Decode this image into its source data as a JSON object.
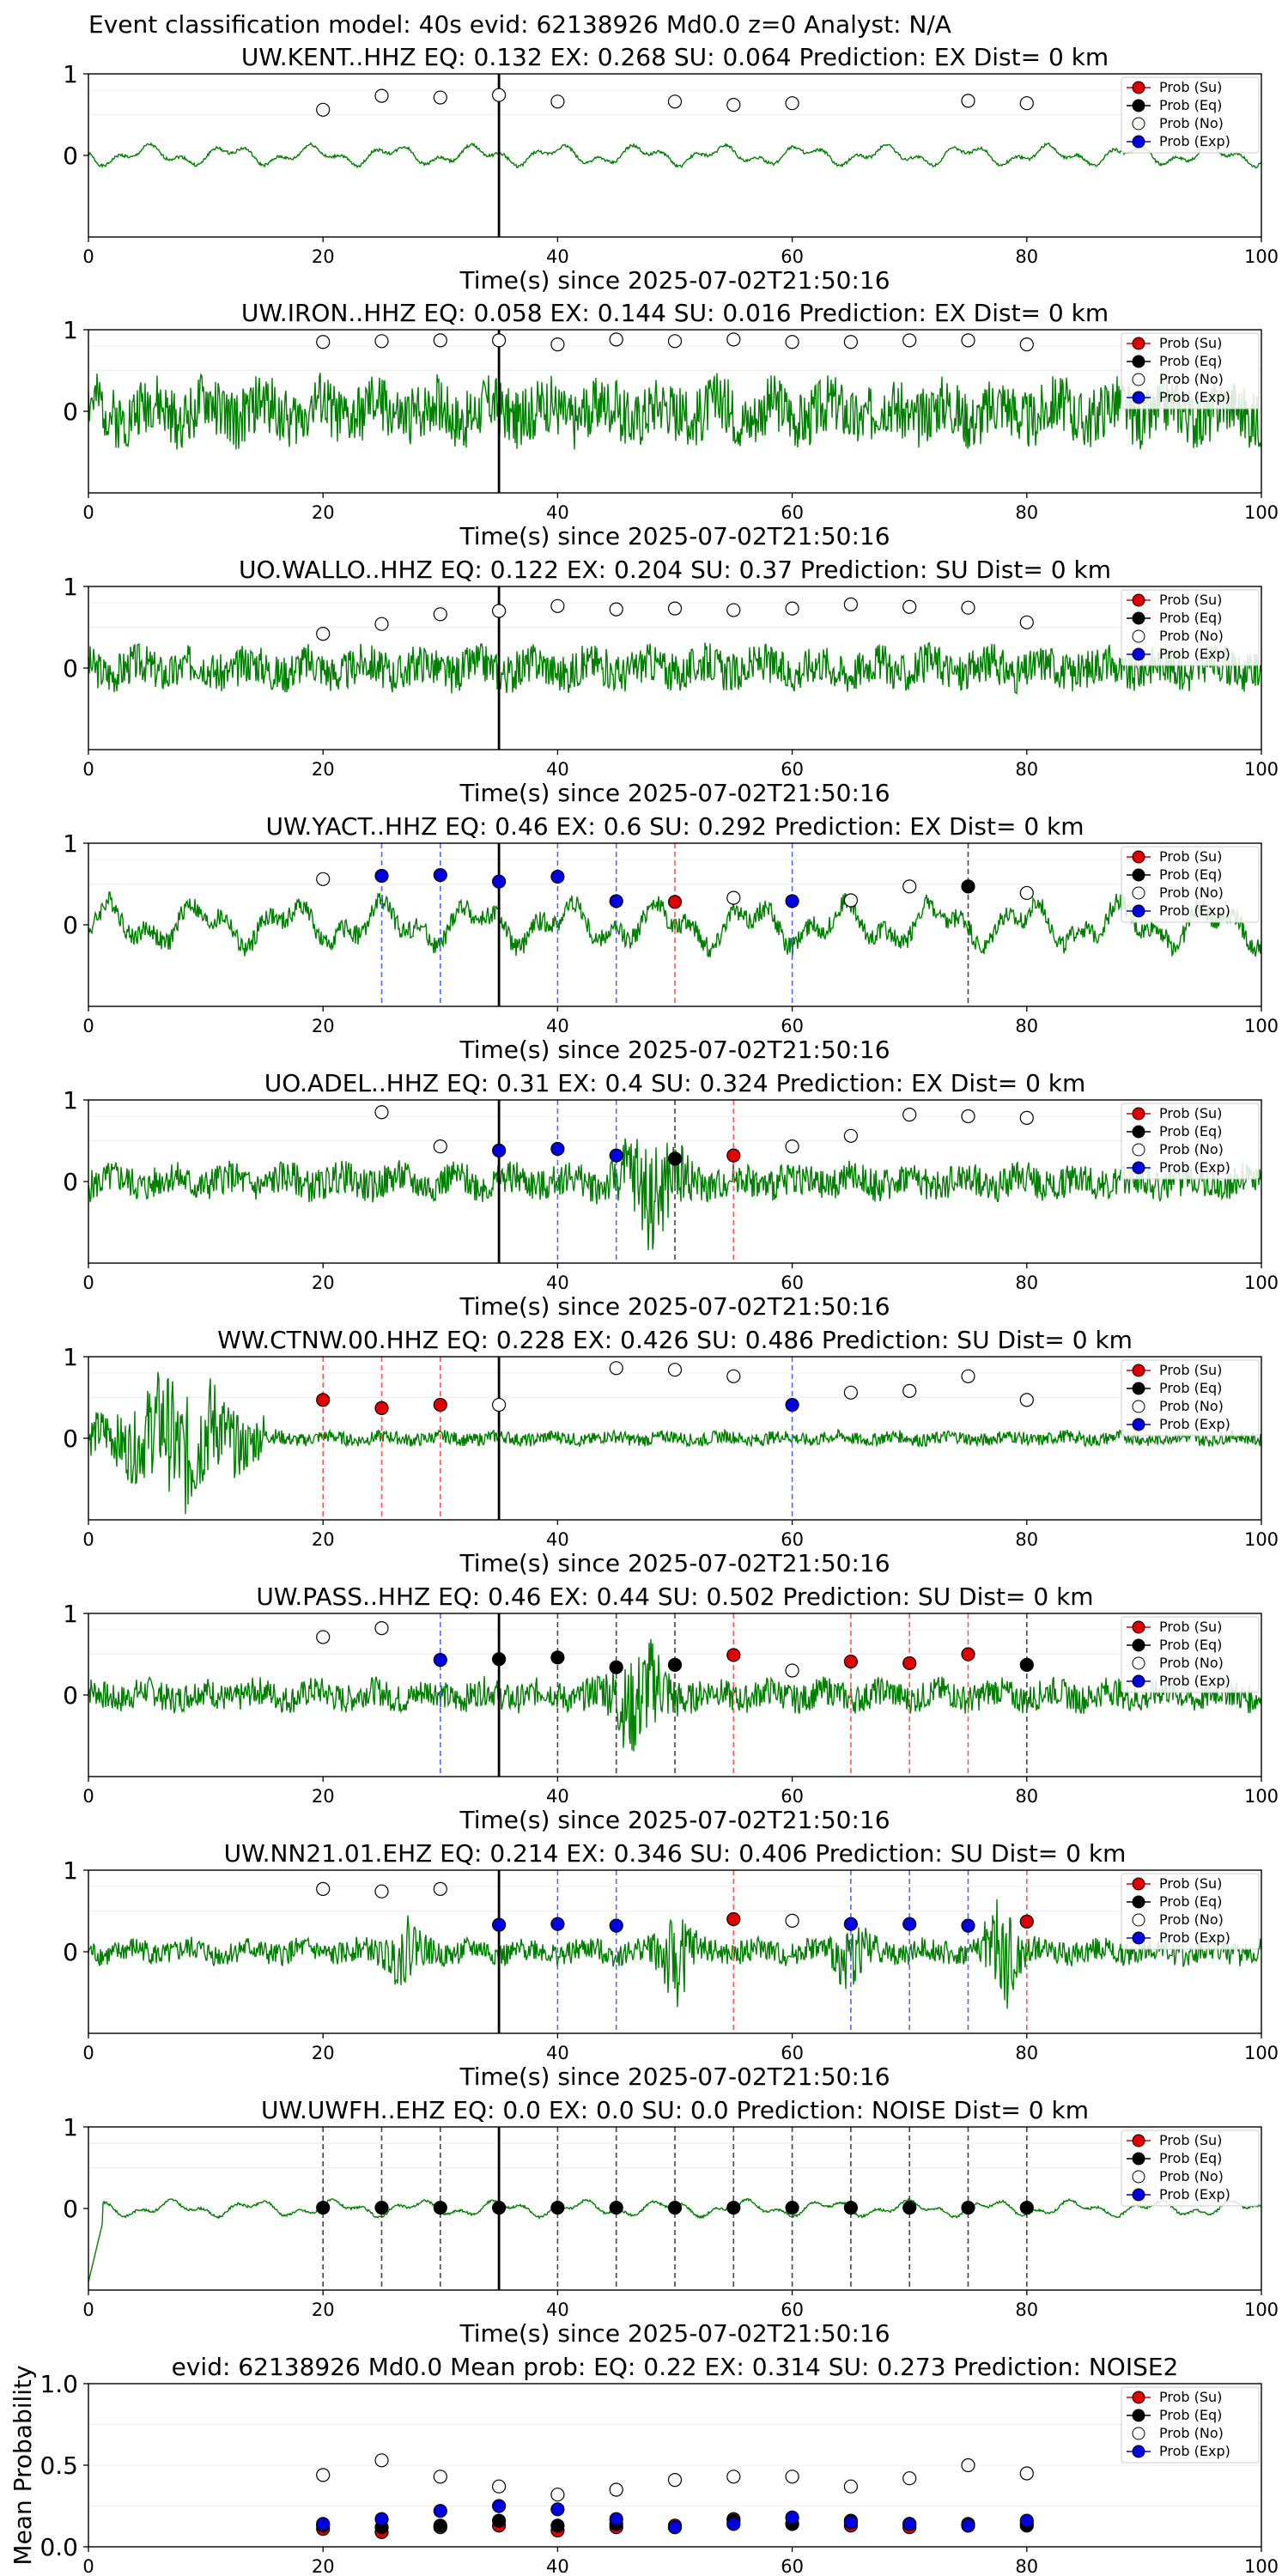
{
  "suptitle": "Event classification model: 40s evid: 62138926 Md0.0 z=0 Analyst: N/A",
  "colors": {
    "waveform": "#008000",
    "su": "#e00000",
    "eq": "#000000",
    "no": "#ffffff",
    "exp": "#0000e0",
    "ref_line": "#000000"
  },
  "legend": [
    "Prob (Su)",
    "Prob (Eq)",
    "Prob (No)",
    "Prob (Exp)"
  ],
  "xlabel": "Time(s) since 2025-07-02T21:50:16",
  "x_ticks": [
    "0",
    "20",
    "40",
    "60",
    "80",
    "100"
  ],
  "chart_data": [
    {
      "type": "line+scatter",
      "title": "UW.KENT..HHZ   EQ: 0.132  EX: 0.268  SU: 0.064   Prediction: EX    Dist= 0 km",
      "xlim": [
        0,
        100
      ],
      "ylim": [
        -1,
        1
      ],
      "yticks": [
        "1",
        "0"
      ],
      "ref_time": 35,
      "wave": {
        "style": "smooth",
        "amp": 0.15,
        "seed": 1
      },
      "points": [
        {
          "t": 20,
          "cls": "no",
          "p": 0.56
        },
        {
          "t": 25,
          "cls": "no",
          "p": 0.73
        },
        {
          "t": 30,
          "cls": "no",
          "p": 0.71
        },
        {
          "t": 35,
          "cls": "no",
          "p": 0.74
        },
        {
          "t": 40,
          "cls": "no",
          "p": 0.66
        },
        {
          "t": 50,
          "cls": "no",
          "p": 0.66
        },
        {
          "t": 55,
          "cls": "no",
          "p": 0.62
        },
        {
          "t": 60,
          "cls": "no",
          "p": 0.64
        },
        {
          "t": 75,
          "cls": "no",
          "p": 0.67
        },
        {
          "t": 80,
          "cls": "no",
          "p": 0.64
        }
      ]
    },
    {
      "type": "line+scatter",
      "title": "UW.IRON..HHZ   EQ: 0.058  EX: 0.144  SU: 0.016   Prediction: EX    Dist= 0 km",
      "xlim": [
        0,
        100
      ],
      "ylim": [
        -1,
        1
      ],
      "yticks": [
        "1",
        "0"
      ],
      "ref_time": 35,
      "wave": {
        "style": "noise",
        "amp": 0.45,
        "seed": 2
      },
      "points": [
        {
          "t": 20,
          "cls": "no",
          "p": 0.85
        },
        {
          "t": 25,
          "cls": "no",
          "p": 0.86
        },
        {
          "t": 30,
          "cls": "no",
          "p": 0.87
        },
        {
          "t": 35,
          "cls": "no",
          "p": 0.87
        },
        {
          "t": 40,
          "cls": "no",
          "p": 0.82
        },
        {
          "t": 45,
          "cls": "no",
          "p": 0.88
        },
        {
          "t": 50,
          "cls": "no",
          "p": 0.86
        },
        {
          "t": 55,
          "cls": "no",
          "p": 0.88
        },
        {
          "t": 60,
          "cls": "no",
          "p": 0.85
        },
        {
          "t": 65,
          "cls": "no",
          "p": 0.85
        },
        {
          "t": 70,
          "cls": "no",
          "p": 0.87
        },
        {
          "t": 75,
          "cls": "no",
          "p": 0.87
        },
        {
          "t": 80,
          "cls": "no",
          "p": 0.82
        }
      ]
    },
    {
      "type": "line+scatter",
      "title": "UO.WALLO..HHZ   EQ: 0.122  EX: 0.204  SU: 0.37   Prediction: SU    Dist= 0 km",
      "xlim": [
        0,
        100
      ],
      "ylim": [
        -1,
        1
      ],
      "yticks": [
        "1",
        "0"
      ],
      "ref_time": 35,
      "wave": {
        "style": "noise",
        "amp": 0.3,
        "seed": 3
      },
      "points": [
        {
          "t": 20,
          "cls": "no",
          "p": 0.42
        },
        {
          "t": 25,
          "cls": "no",
          "p": 0.54
        },
        {
          "t": 30,
          "cls": "no",
          "p": 0.66
        },
        {
          "t": 35,
          "cls": "no",
          "p": 0.7
        },
        {
          "t": 40,
          "cls": "no",
          "p": 0.76
        },
        {
          "t": 45,
          "cls": "no",
          "p": 0.72
        },
        {
          "t": 50,
          "cls": "no",
          "p": 0.73
        },
        {
          "t": 55,
          "cls": "no",
          "p": 0.71
        },
        {
          "t": 60,
          "cls": "no",
          "p": 0.73
        },
        {
          "t": 65,
          "cls": "no",
          "p": 0.78
        },
        {
          "t": 70,
          "cls": "no",
          "p": 0.75
        },
        {
          "t": 75,
          "cls": "no",
          "p": 0.74
        },
        {
          "t": 80,
          "cls": "no",
          "p": 0.56
        }
      ]
    },
    {
      "type": "line+scatter",
      "title": "UW.YACT..HHZ   EQ: 0.46  EX: 0.6  SU: 0.292   Prediction: EX    Dist= 0 km",
      "xlim": [
        0,
        100
      ],
      "ylim": [
        -1,
        1
      ],
      "yticks": [
        "1",
        "0"
      ],
      "ref_time": 35,
      "wave": {
        "style": "mixed",
        "amp": 0.4,
        "seed": 4
      },
      "points": [
        {
          "t": 20,
          "cls": "no",
          "p": 0.56
        },
        {
          "t": 25,
          "cls": "exp",
          "p": 0.6
        },
        {
          "t": 30,
          "cls": "exp",
          "p": 0.61
        },
        {
          "t": 35,
          "cls": "exp",
          "p": 0.53
        },
        {
          "t": 40,
          "cls": "exp",
          "p": 0.59
        },
        {
          "t": 45,
          "cls": "exp",
          "p": 0.29
        },
        {
          "t": 50,
          "cls": "su",
          "p": 0.28
        },
        {
          "t": 55,
          "cls": "no",
          "p": 0.33
        },
        {
          "t": 60,
          "cls": "exp",
          "p": 0.29
        },
        {
          "t": 65,
          "cls": "no",
          "p": 0.3
        },
        {
          "t": 70,
          "cls": "no",
          "p": 0.47
        },
        {
          "t": 75,
          "cls": "eq",
          "p": 0.47
        },
        {
          "t": 80,
          "cls": "no",
          "p": 0.39
        }
      ]
    },
    {
      "type": "line+scatter",
      "title": "UO.ADEL..HHZ   EQ: 0.31  EX: 0.4  SU: 0.324   Prediction: EX    Dist= 0 km",
      "xlim": [
        0,
        100
      ],
      "ylim": [
        -1,
        1
      ],
      "yticks": [
        "1",
        "0"
      ],
      "ref_time": 35,
      "wave": {
        "style": "burst",
        "amp": 0.25,
        "seed": 5,
        "burst_at": 48,
        "burst_amp": 0.85
      },
      "points": [
        {
          "t": 25,
          "cls": "no",
          "p": 0.85
        },
        {
          "t": 30,
          "cls": "no",
          "p": 0.43
        },
        {
          "t": 35,
          "cls": "exp",
          "p": 0.38
        },
        {
          "t": 40,
          "cls": "exp",
          "p": 0.4
        },
        {
          "t": 45,
          "cls": "exp",
          "p": 0.32
        },
        {
          "t": 50,
          "cls": "eq",
          "p": 0.28
        },
        {
          "t": 55,
          "cls": "su",
          "p": 0.32
        },
        {
          "t": 60,
          "cls": "no",
          "p": 0.43
        },
        {
          "t": 65,
          "cls": "no",
          "p": 0.56
        },
        {
          "t": 70,
          "cls": "no",
          "p": 0.82
        },
        {
          "t": 75,
          "cls": "no",
          "p": 0.8
        },
        {
          "t": 80,
          "cls": "no",
          "p": 0.78
        }
      ]
    },
    {
      "type": "line+scatter",
      "title": "WW.CTNW.00.HHZ   EQ: 0.228  EX: 0.426  SU: 0.486   Prediction: SU    Dist= 0 km",
      "xlim": [
        0,
        100
      ],
      "ylim": [
        -1,
        1
      ],
      "yticks": [
        "1",
        "0"
      ],
      "ref_time": 35,
      "wave": {
        "style": "early",
        "amp": 0.1,
        "seed": 6,
        "burst_at": 8,
        "burst_amp": 0.75
      },
      "points": [
        {
          "t": 20,
          "cls": "su",
          "p": 0.47
        },
        {
          "t": 25,
          "cls": "su",
          "p": 0.37
        },
        {
          "t": 30,
          "cls": "su",
          "p": 0.41
        },
        {
          "t": 35,
          "cls": "no",
          "p": 0.41
        },
        {
          "t": 45,
          "cls": "no",
          "p": 0.86
        },
        {
          "t": 50,
          "cls": "no",
          "p": 0.84
        },
        {
          "t": 55,
          "cls": "no",
          "p": 0.76
        },
        {
          "t": 60,
          "cls": "exp",
          "p": 0.41
        },
        {
          "t": 65,
          "cls": "no",
          "p": 0.56
        },
        {
          "t": 70,
          "cls": "no",
          "p": 0.58
        },
        {
          "t": 75,
          "cls": "no",
          "p": 0.76
        },
        {
          "t": 80,
          "cls": "no",
          "p": 0.47
        }
      ]
    },
    {
      "type": "line+scatter",
      "title": "UW.PASS..HHZ   EQ: 0.46  EX: 0.44  SU: 0.502   Prediction: SU    Dist= 0 km",
      "xlim": [
        0,
        100
      ],
      "ylim": [
        -1,
        1
      ],
      "yticks": [
        "1",
        "0"
      ],
      "ref_time": 35,
      "wave": {
        "style": "burst",
        "amp": 0.22,
        "seed": 7,
        "burst_at": 47,
        "burst_amp": 0.8
      },
      "points": [
        {
          "t": 20,
          "cls": "no",
          "p": 0.71
        },
        {
          "t": 25,
          "cls": "no",
          "p": 0.82
        },
        {
          "t": 30,
          "cls": "exp",
          "p": 0.43
        },
        {
          "t": 35,
          "cls": "eq",
          "p": 0.44
        },
        {
          "t": 40,
          "cls": "eq",
          "p": 0.46
        },
        {
          "t": 45,
          "cls": "eq",
          "p": 0.34
        },
        {
          "t": 50,
          "cls": "eq",
          "p": 0.37
        },
        {
          "t": 55,
          "cls": "su",
          "p": 0.49
        },
        {
          "t": 60,
          "cls": "no",
          "p": 0.3
        },
        {
          "t": 65,
          "cls": "su",
          "p": 0.41
        },
        {
          "t": 70,
          "cls": "su",
          "p": 0.39
        },
        {
          "t": 75,
          "cls": "su",
          "p": 0.5
        },
        {
          "t": 80,
          "cls": "eq",
          "p": 0.37
        }
      ]
    },
    {
      "type": "line+scatter",
      "title": "UW.NN21.01.EHZ   EQ: 0.214  EX: 0.346  SU: 0.406   Prediction: SU    Dist= 0 km",
      "xlim": [
        0,
        100
      ],
      "ylim": [
        -1,
        1
      ],
      "yticks": [
        "1",
        "0"
      ],
      "ref_time": 35,
      "wave": {
        "style": "multi",
        "amp": 0.18,
        "seed": 8,
        "bursts": [
          [
            27,
            0.5
          ],
          [
            50,
            0.75
          ],
          [
            65,
            0.5
          ],
          [
            78,
            0.85
          ]
        ]
      },
      "points": [
        {
          "t": 20,
          "cls": "no",
          "p": 0.77
        },
        {
          "t": 25,
          "cls": "no",
          "p": 0.74
        },
        {
          "t": 30,
          "cls": "no",
          "p": 0.77
        },
        {
          "t": 35,
          "cls": "exp",
          "p": 0.33
        },
        {
          "t": 40,
          "cls": "exp",
          "p": 0.34
        },
        {
          "t": 45,
          "cls": "exp",
          "p": 0.32
        },
        {
          "t": 55,
          "cls": "su",
          "p": 0.4
        },
        {
          "t": 60,
          "cls": "no",
          "p": 0.38
        },
        {
          "t": 65,
          "cls": "exp",
          "p": 0.34
        },
        {
          "t": 70,
          "cls": "exp",
          "p": 0.34
        },
        {
          "t": 75,
          "cls": "exp",
          "p": 0.32
        },
        {
          "t": 80,
          "cls": "su",
          "p": 0.37
        }
      ]
    },
    {
      "type": "line+scatter",
      "title": "UW.UWFH..EHZ   EQ: 0.0  EX: 0.0  SU: 0.0   Prediction: NOISE    Dist= 0 km",
      "xlim": [
        0,
        100
      ],
      "ylim": [
        -1,
        1
      ],
      "yticks": [
        "1",
        "0"
      ],
      "ref_time": 35,
      "wave": {
        "style": "smooth",
        "amp": 0.12,
        "seed": 9,
        "dip_start": true
      },
      "points": [
        {
          "t": 20,
          "cls": "eq",
          "p": 0.01
        },
        {
          "t": 25,
          "cls": "eq",
          "p": 0.01
        },
        {
          "t": 30,
          "cls": "eq",
          "p": 0.01
        },
        {
          "t": 35,
          "cls": "eq",
          "p": 0.01
        },
        {
          "t": 40,
          "cls": "eq",
          "p": 0.01
        },
        {
          "t": 45,
          "cls": "eq",
          "p": 0.01
        },
        {
          "t": 50,
          "cls": "eq",
          "p": 0.01
        },
        {
          "t": 55,
          "cls": "eq",
          "p": 0.01
        },
        {
          "t": 60,
          "cls": "eq",
          "p": 0.01
        },
        {
          "t": 65,
          "cls": "eq",
          "p": 0.01
        },
        {
          "t": 70,
          "cls": "eq",
          "p": 0.01
        },
        {
          "t": 75,
          "cls": "eq",
          "p": 0.01
        },
        {
          "t": 80,
          "cls": "eq",
          "p": 0.01
        }
      ]
    },
    {
      "type": "scatter",
      "title": "evid: 62138926  Md0.0   Mean prob:    EQ: 0.22  EX: 0.314  SU: 0.273   Prediction: NOISE2",
      "ylabel": "Mean Probability",
      "xlim": [
        0,
        100
      ],
      "ylim": [
        0,
        1
      ],
      "yticks": [
        "1.0",
        "0.5",
        "0.0"
      ],
      "series": [
        {
          "name": "Prob (Su)",
          "cls": "su",
          "x": [
            20,
            25,
            30,
            35,
            40,
            45,
            50,
            55,
            60,
            65,
            70,
            75,
            80
          ],
          "y": [
            0.11,
            0.09,
            0.12,
            0.13,
            0.1,
            0.12,
            0.13,
            0.17,
            0.14,
            0.13,
            0.12,
            0.13,
            0.14
          ]
        },
        {
          "name": "Prob (Eq)",
          "cls": "eq",
          "x": [
            20,
            25,
            30,
            35,
            40,
            45,
            50,
            55,
            60,
            65,
            70,
            75,
            80
          ],
          "y": [
            0.13,
            0.12,
            0.13,
            0.16,
            0.13,
            0.14,
            0.12,
            0.16,
            0.14,
            0.16,
            0.14,
            0.14,
            0.13
          ]
        },
        {
          "name": "Prob (No)",
          "cls": "no",
          "x": [
            20,
            25,
            30,
            35,
            40,
            45,
            50,
            55,
            60,
            65,
            70,
            75,
            80
          ],
          "y": [
            0.44,
            0.53,
            0.43,
            0.37,
            0.32,
            0.35,
            0.41,
            0.43,
            0.43,
            0.37,
            0.42,
            0.5,
            0.45
          ]
        },
        {
          "name": "Prob (Exp)",
          "cls": "exp",
          "x": [
            20,
            25,
            30,
            35,
            40,
            45,
            50,
            55,
            60,
            65,
            70,
            75,
            80
          ],
          "y": [
            0.14,
            0.17,
            0.22,
            0.25,
            0.23,
            0.17,
            0.12,
            0.14,
            0.18,
            0.15,
            0.14,
            0.13,
            0.16
          ]
        }
      ]
    }
  ]
}
